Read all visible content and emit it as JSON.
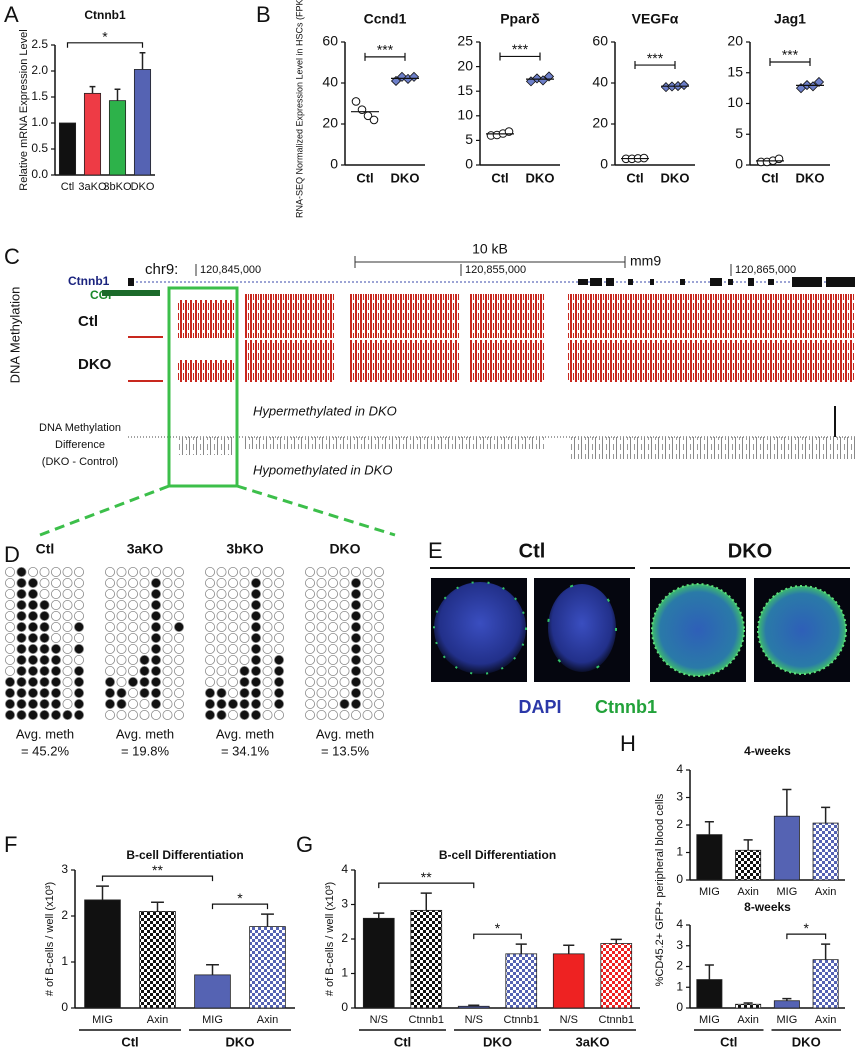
{
  "chart_data": [
    {
      "type": "bar",
      "panel": "A",
      "title": "Ctnnb1",
      "y_label": "Relative mRNA Expression Level",
      "categories": [
        "Ctl",
        "3aKO",
        "3bKO",
        "DKO"
      ],
      "values": [
        1.0,
        1.57,
        1.43,
        2.03
      ],
      "errors": [
        0,
        0.13,
        0.22,
        0.32
      ],
      "colors": [
        "#111111",
        "#ee3b45",
        "#2db24a",
        "#5563b3"
      ],
      "hatched": [
        false,
        false,
        false,
        false
      ],
      "ylim": [
        0,
        2.5
      ],
      "yticks": [
        {
          "value": 0,
          "label": "0.0"
        },
        {
          "value": 0.5,
          "label": "0.5"
        },
        {
          "value": 1,
          "label": "1.0"
        },
        {
          "value": 1.5,
          "label": "1.5"
        },
        {
          "value": 2,
          "label": "2.0"
        },
        {
          "value": 2.5,
          "label": "2.5"
        }
      ],
      "significance": [
        {
          "label": "*",
          "from": 0,
          "to": 3
        }
      ]
    },
    {
      "type": "strip",
      "panel": "B",
      "title": "Ccnd1",
      "y_label": "RNA-SEQ Normalized Expression Level in HSCs (FPKM)",
      "categories": [
        "Ctl",
        "DKO"
      ],
      "values": [
        [
          31,
          27,
          24,
          22
        ],
        [
          41,
          43,
          42,
          43
        ]
      ],
      "colors": [
        "#ffffff",
        "#6d7fc9"
      ],
      "ylim": [
        0,
        60
      ],
      "yticks": [
        0,
        20,
        40,
        60
      ],
      "significance": [
        {
          "label": "***",
          "from": 0,
          "to": 1
        }
      ]
    },
    {
      "type": "strip",
      "title": "Pparδ",
      "categories": [
        "Ctl",
        "DKO"
      ],
      "values": [
        [
          6.0,
          6.1,
          6.4,
          6.8
        ],
        [
          17.0,
          17.6,
          17.2,
          18.0
        ]
      ],
      "colors": [
        "#ffffff",
        "#6d7fc9"
      ],
      "ylim": [
        0,
        25
      ],
      "yticks": [
        0,
        5,
        10,
        15,
        20,
        25
      ],
      "significance": [
        {
          "label": "***",
          "from": 0,
          "to": 1
        }
      ]
    },
    {
      "type": "strip",
      "title": "VEGFα",
      "categories": [
        "Ctl",
        "DKO"
      ],
      "values": [
        [
          3,
          3,
          3.2,
          3.4
        ],
        [
          38,
          38.3,
          38.5,
          39
        ]
      ],
      "colors": [
        "#ffffff",
        "#6d7fc9"
      ],
      "ylim": [
        0,
        60
      ],
      "yticks": [
        0,
        20,
        40,
        60
      ],
      "significance": [
        {
          "label": "***",
          "from": 0,
          "to": 1
        }
      ]
    },
    {
      "type": "strip",
      "title": "Jag1",
      "categories": [
        "Ctl",
        "DKO"
      ],
      "values": [
        [
          0.5,
          0.5,
          0.7,
          1.0
        ],
        [
          12.5,
          13.0,
          12.8,
          13.5
        ]
      ],
      "colors": [
        "#ffffff",
        "#6d7fc9"
      ],
      "ylim": [
        0,
        20
      ],
      "yticks": [
        0,
        5,
        10,
        15,
        20
      ],
      "significance": [
        {
          "label": "***",
          "from": 0,
          "to": 1
        }
      ]
    },
    {
      "type": "bar",
      "panel": "F",
      "title": "B-cell Differentiation",
      "y_label": "# of B-cells / well (x10³)",
      "categories": [
        "MIG",
        "Axin",
        "MIG",
        "Axin"
      ],
      "groups": [
        "Ctl",
        "DKO"
      ],
      "values": [
        2.35,
        2.1,
        0.72,
        1.77
      ],
      "errors": [
        0.3,
        0.2,
        0.22,
        0.27
      ],
      "colors": [
        "#111111",
        "#111111",
        "#5563b3",
        "#5563b3"
      ],
      "hatched": [
        false,
        true,
        false,
        true
      ],
      "ylim": [
        0,
        3
      ],
      "yticks": [
        0,
        1,
        2,
        3
      ],
      "significance": [
        {
          "label": "**",
          "from": 0,
          "to": 2
        },
        {
          "label": "*",
          "from": 2,
          "to": 3
        }
      ]
    },
    {
      "type": "bar",
      "panel": "G",
      "title": "B-cell Differentiation",
      "y_label": "# of B-cells / well (x10³)",
      "categories": [
        "N/S",
        "Ctnnb1",
        "N/S",
        "Ctnnb1",
        "N/S",
        "Ctnnb1"
      ],
      "groups": [
        "Ctl",
        "DKO",
        "3aKO"
      ],
      "values": [
        2.6,
        2.83,
        0.05,
        1.57,
        1.57,
        1.87
      ],
      "errors": [
        0.15,
        0.5,
        0.03,
        0.28,
        0.25,
        0.12
      ],
      "colors": [
        "#111111",
        "#111111",
        "#5563b3",
        "#5563b3",
        "#ee2222",
        "#ee2222"
      ],
      "hatched": [
        false,
        true,
        false,
        true,
        false,
        true
      ],
      "ylim": [
        0,
        4
      ],
      "yticks": [
        0,
        1,
        2,
        3,
        4
      ],
      "significance": [
        {
          "label": "**",
          "from": 0,
          "to": 2
        },
        {
          "label": "*",
          "from": 2,
          "to": 3
        }
      ]
    },
    {
      "type": "bar",
      "panel": "H",
      "title": "4-weeks",
      "y_label": "%CD45.2+ GFP+ peripheral blood cells",
      "categories": [
        "MIG",
        "Axin",
        "MIG",
        "Axin"
      ],
      "values": [
        1.65,
        1.08,
        2.32,
        2.07
      ],
      "errors": [
        0.47,
        0.38,
        0.97,
        0.57
      ],
      "colors": [
        "#111111",
        "#111111",
        "#5563b3",
        "#5563b3"
      ],
      "hatched": [
        false,
        true,
        false,
        true
      ],
      "ylim": [
        0,
        4
      ],
      "yticks": [
        0,
        1,
        2,
        3,
        4
      ]
    },
    {
      "type": "bar",
      "title": "8-weeks",
      "categories": [
        "MIG",
        "Axin",
        "MIG",
        "Axin"
      ],
      "groups": [
        "Ctl",
        "DKO"
      ],
      "values": [
        1.37,
        0.18,
        0.35,
        2.33
      ],
      "errors": [
        0.7,
        0.06,
        0.1,
        0.75
      ],
      "colors": [
        "#111111",
        "#111111",
        "#5563b3",
        "#5563b3"
      ],
      "hatched": [
        false,
        true,
        false,
        true
      ],
      "ylim": [
        0,
        4
      ],
      "yticks": [
        0,
        1,
        2,
        3,
        4
      ],
      "significance": [
        {
          "label": "*",
          "from": 2,
          "to": 3
        }
      ]
    }
  ],
  "genome_track": {
    "panel": "C",
    "scale": "10 kB",
    "assembly": "mm9",
    "chrom": "chr9:",
    "coordinates": [
      "120,845,000",
      "120,855,000",
      "120,865,000"
    ],
    "gene": "Ctnnb1",
    "cgi": "CGI",
    "track_label": "DNA Methylation",
    "samples": [
      "Ctl",
      "DKO"
    ],
    "difference_label": [
      "DNA Methylation",
      "Difference",
      "(DKO - Control)"
    ],
    "hyper": "Hypermethylated in DKO",
    "hypo": "Hypomethylated in DKO"
  },
  "methylation_grid": {
    "panel": "D",
    "samples": [
      {
        "name": "Ctl",
        "rows": [
          "0100000",
          "0110000",
          "0110000",
          "0111000",
          "0111000",
          "0111001",
          "0111000",
          "0111101",
          "0111100",
          "0111101",
          "1111101",
          "1111101",
          "1111101",
          "1111111"
        ],
        "avg_label": "Avg. meth",
        "avg": "= 45.2%"
      },
      {
        "name": "3aKO",
        "rows": [
          "0000000",
          "0000100",
          "0000100",
          "0000100",
          "0000100",
          "0000101",
          "0000100",
          "0000100",
          "0001100",
          "0001100",
          "1011100",
          "1101100",
          "1100100",
          "0000000"
        ],
        "avg_label": "Avg. meth",
        "avg": "= 19.8%"
      },
      {
        "name": "3bKO",
        "rows": [
          "0000000",
          "0000100",
          "0000100",
          "0000100",
          "0000100",
          "0000100",
          "0000100",
          "0000100",
          "0000101",
          "0001101",
          "0001101",
          "1101101",
          "1111101",
          "1101100"
        ],
        "avg_label": "Avg. meth",
        "avg": "= 34.1%"
      },
      {
        "name": "DKO",
        "rows": [
          "0000000",
          "0000100",
          "0000100",
          "0000100",
          "0000100",
          "0000100",
          "0000100",
          "0000100",
          "0000100",
          "0000100",
          "0000100",
          "0000100",
          "0001100",
          "0000000"
        ],
        "avg_label": "Avg. meth",
        "avg": "= 13.5%"
      }
    ]
  },
  "microscopy": {
    "panel": "E",
    "groups": [
      "Ctl",
      "DKO"
    ],
    "stains": [
      "DAPI",
      "Ctnnb1"
    ]
  }
}
